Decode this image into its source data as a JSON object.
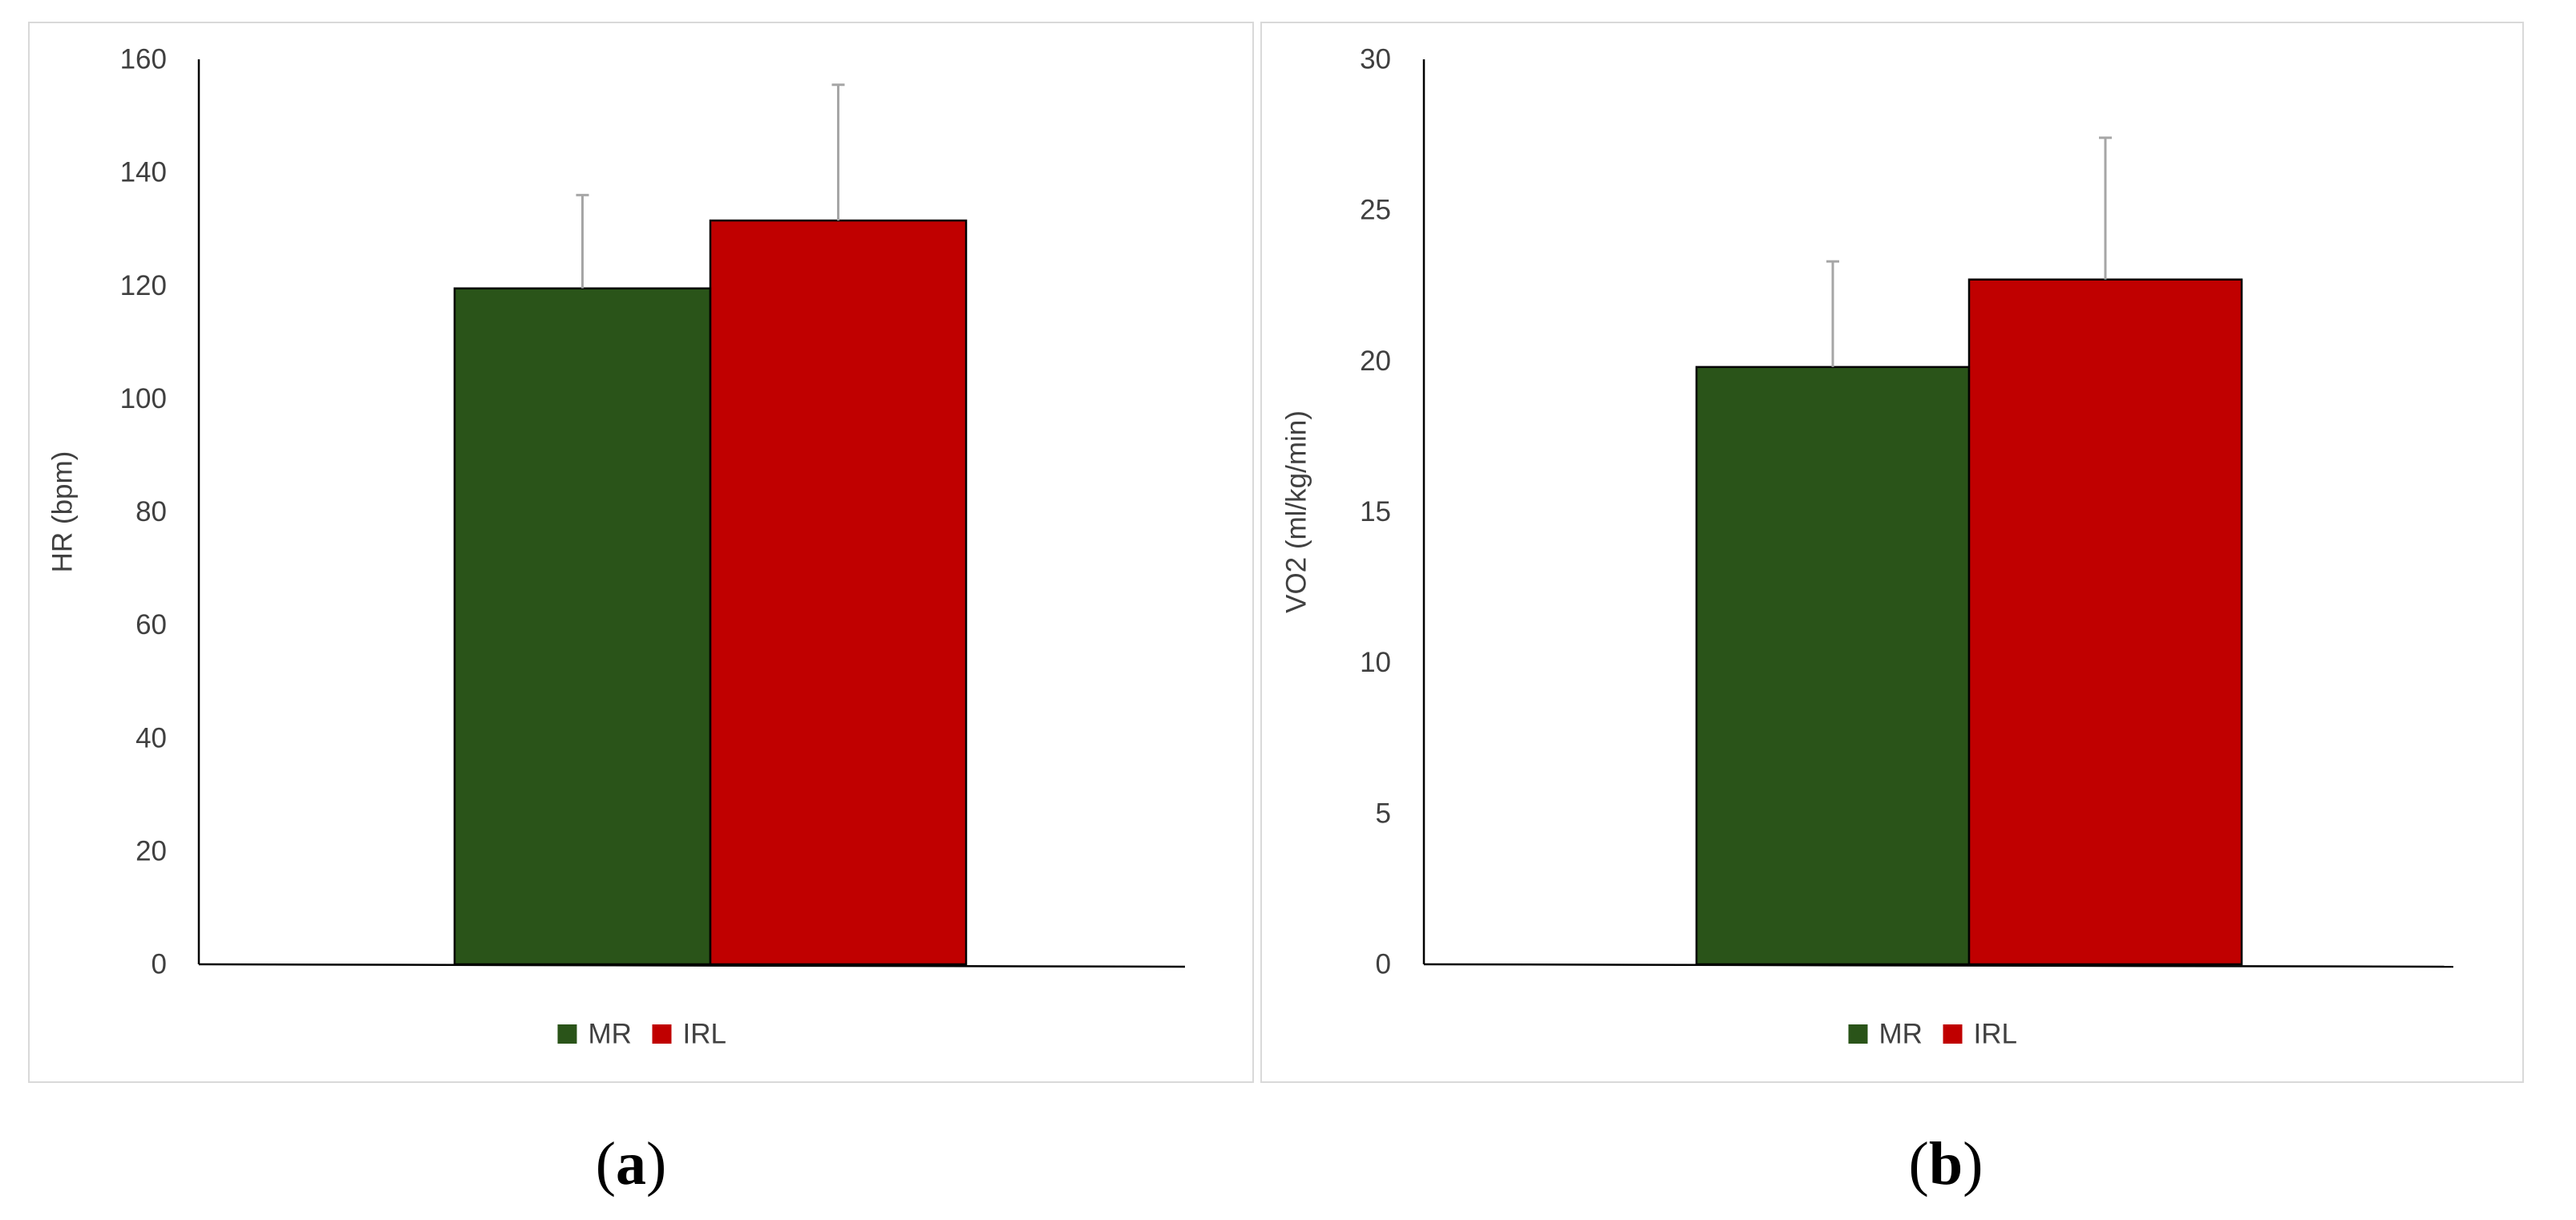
{
  "chart_data": [
    {
      "type": "bar",
      "panel_label": "a",
      "categories": [
        ""
      ],
      "series": [
        {
          "name": "MR",
          "values": [
            119.5
          ],
          "error": [
            16.5
          ],
          "color": "#2a5419"
        },
        {
          "name": "IRL",
          "values": [
            131.5
          ],
          "error": [
            24.0
          ],
          "color": "#c00000"
        }
      ],
      "ylabel": "HR (bpm)",
      "xlabel": "",
      "ylim": [
        0,
        160
      ],
      "yticks": [
        "0",
        "20",
        "40",
        "60",
        "80",
        "100",
        "120",
        "140",
        "160"
      ],
      "grid": false,
      "legend_position": "bottom"
    },
    {
      "type": "bar",
      "panel_label": "b",
      "categories": [
        ""
      ],
      "series": [
        {
          "name": "MR",
          "values": [
            19.8
          ],
          "error": [
            3.5
          ],
          "color": "#2a5419"
        },
        {
          "name": "IRL",
          "values": [
            22.7
          ],
          "error": [
            4.7
          ],
          "color": "#c00000"
        }
      ],
      "ylabel": "VO2 (ml/kg/min)",
      "xlabel": "",
      "ylim": [
        0,
        30
      ],
      "yticks": [
        "0",
        "5",
        "10",
        "15",
        "20",
        "25",
        "30"
      ],
      "grid": false,
      "legend_position": "bottom"
    }
  ],
  "colors": {
    "mr": "#2a5419",
    "irl": "#c00000",
    "axis": "#000000",
    "frame": "#d9d9d9",
    "error_bar": "#a6a6a6"
  }
}
